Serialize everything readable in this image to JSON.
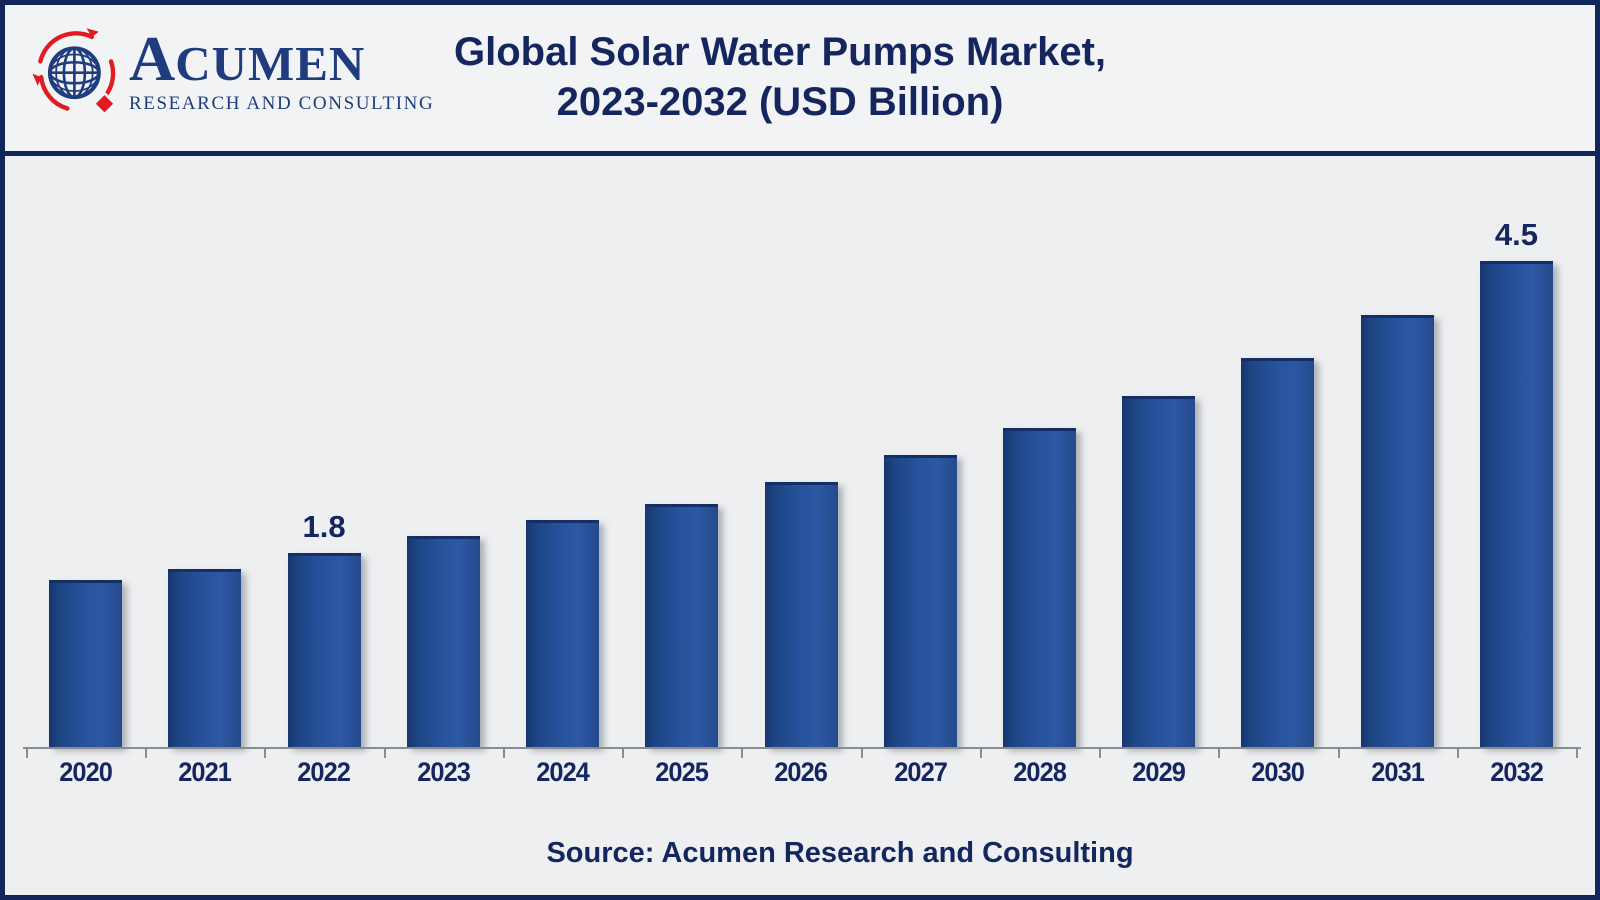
{
  "header": {
    "logo": {
      "brand_initial": "A",
      "brand_rest": "CUMEN",
      "tagline": "RESEARCH AND CONSULTING",
      "navy": "#1e3c7e",
      "red": "#e01b22",
      "globe_icon": "globe-with-red-orbit-arrows-and-red-diamond"
    },
    "title_line1": "Global Solar Water Pumps Market,",
    "title_line2": "2023-2032 (USD Billion)",
    "title_color": "#15265f"
  },
  "chart_data": {
    "type": "bar",
    "title": "Global Solar Water Pumps Market, 2023-2032 (USD Billion)",
    "unit": "USD Billion",
    "categories": [
      "2020",
      "2021",
      "2022",
      "2023",
      "2024",
      "2025",
      "2026",
      "2027",
      "2028",
      "2029",
      "2030",
      "2031",
      "2032"
    ],
    "values": [
      1.55,
      1.65,
      1.8,
      1.95,
      2.1,
      2.25,
      2.45,
      2.7,
      2.95,
      3.25,
      3.6,
      4.0,
      4.5
    ],
    "data_labels": {
      "2022": "1.8",
      "2032": "4.5"
    },
    "xlabel": "",
    "ylabel": "",
    "ylim": [
      0,
      5
    ],
    "grid": false,
    "legend": false,
    "bar_gradient": [
      "#16366f",
      "#27529c",
      "#25498c"
    ],
    "value_label_color": "#15265f",
    "tick_label_color": "#15265f",
    "axis_color": "#8a8d90"
  },
  "footer": {
    "source_text": "Source: Acumen Research and Consulting"
  }
}
